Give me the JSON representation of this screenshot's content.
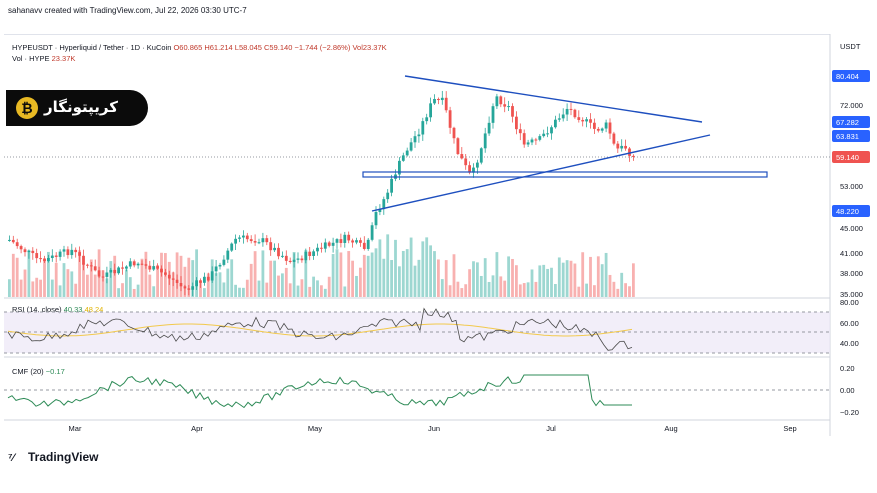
{
  "credit": "sahanavv created with TradingView.com, Jul 22, 2026 03:30 UTC-7",
  "symbol": {
    "name": "HYPEUSDT · Hyperliquid / Tether · 1D · KuCoin",
    "o": "O60.865",
    "h": "H61.214",
    "l": "L58.045",
    "c": "C59.140",
    "chg": "−1.744 (−2.86%)",
    "vol": "Vol23.37K"
  },
  "volume_label": {
    "name": "Vol · HYPE",
    "value": "23.37K"
  },
  "currency": "USDT",
  "logo_text": "کریپتونگار",
  "brand": "TradingView",
  "rsi": {
    "label": "RSI (14, close)",
    "v1": "40.33",
    "v2": "48.24"
  },
  "cmf": {
    "label": "CMF (20)",
    "value": "−0.17"
  },
  "chart_data": {
    "type": "candlestick",
    "price_axis": {
      "ticks": [
        "72.000",
        "53.000",
        "45.000",
        "41.000",
        "38.000",
        "35.000"
      ],
      "highlighted": [
        {
          "label": "80.404",
          "color": "#2962ff"
        },
        {
          "label": "67.282",
          "color": "#2962ff"
        },
        {
          "label": "63.831",
          "color": "#2962ff"
        },
        {
          "label": "59.140",
          "color": "#ef5350"
        },
        {
          "label": "48.220",
          "color": "#2962ff"
        }
      ]
    },
    "x_ticks": [
      "Mar",
      "Apr",
      "May",
      "Jun",
      "Jul",
      "Aug",
      "Sep"
    ],
    "rsi_ticks": [
      "80.00",
      "60.00",
      "40.00"
    ],
    "cmf_ticks": [
      "0.20",
      "0.00",
      "−0.20"
    ],
    "colors": {
      "up": "#26a69a",
      "down": "#ef5350",
      "trend": "#1e4fbf"
    }
  }
}
